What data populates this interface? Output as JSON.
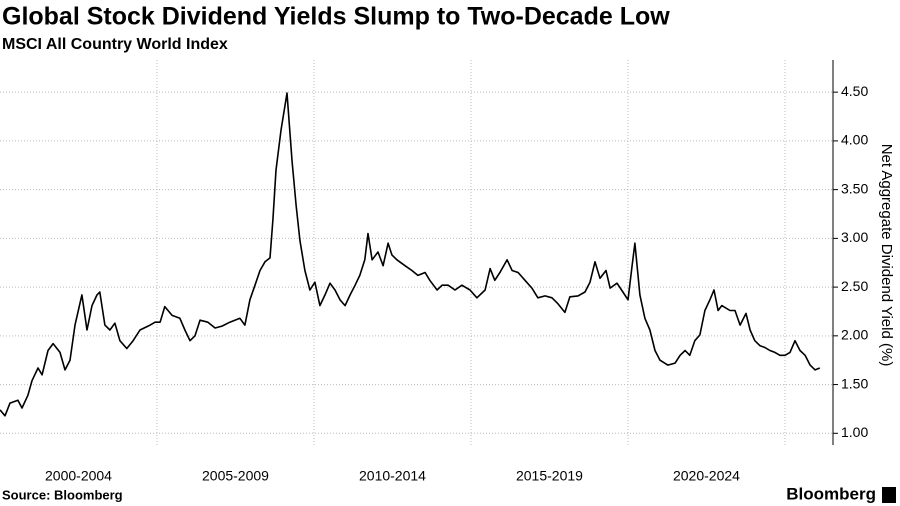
{
  "chart_data": {
    "type": "line",
    "title": "Global Stock Dividend Yields Slump to Two-Decade Low",
    "subtitle": "MSCI All Country World Index",
    "y_label": "Net Aggregate Dividend Yield (%)",
    "source": "Source: Bloomberg",
    "brand": "Bloomberg",
    "color": "#000000",
    "xlim": [
      2000,
      2026.53
    ],
    "ylim": [
      0.88,
      4.83
    ],
    "grid": true,
    "xgrid": [
      2005,
      2010,
      2015,
      2020,
      2025
    ],
    "xticks": [
      {
        "value": 2002.5,
        "label": "2000-2004"
      },
      {
        "value": 2007.5,
        "label": "2005-2009"
      },
      {
        "value": 2012.5,
        "label": "2010-2014"
      },
      {
        "value": 2017.5,
        "label": "2015-2019"
      },
      {
        "value": 2022.5,
        "label": "2020-2024"
      }
    ],
    "yticks": [
      {
        "value": 1,
        "label": "1.00"
      },
      {
        "value": 1.5,
        "label": "1.50"
      },
      {
        "value": 2,
        "label": "2.00"
      },
      {
        "value": 2.5,
        "label": "2.50"
      },
      {
        "value": 3,
        "label": "3.00"
      },
      {
        "value": 3.5,
        "label": "3.50"
      },
      {
        "value": 4,
        "label": "4.00"
      },
      {
        "value": 4.5,
        "label": "4.50"
      }
    ],
    "x": [
      2000.0,
      2000.16,
      2000.32,
      2000.57,
      2000.7,
      2000.89,
      2001.02,
      2001.21,
      2001.34,
      2001.53,
      2001.69,
      2001.91,
      2002.07,
      2002.23,
      2002.39,
      2002.61,
      2002.77,
      2002.93,
      2003.09,
      2003.18,
      2003.34,
      2003.5,
      2003.66,
      2003.82,
      2004.04,
      2004.24,
      2004.46,
      2004.78,
      2004.94,
      2005.1,
      2005.25,
      2005.48,
      2005.73,
      2005.89,
      2006.05,
      2006.21,
      2006.37,
      2006.62,
      2006.85,
      2007.07,
      2007.32,
      2007.64,
      2007.8,
      2007.96,
      2008.12,
      2008.28,
      2008.44,
      2008.6,
      2008.69,
      2008.79,
      2008.95,
      2009.14,
      2009.3,
      2009.43,
      2009.55,
      2009.71,
      2009.87,
      2010.03,
      2010.19,
      2010.35,
      2010.51,
      2010.67,
      2010.83,
      2010.99,
      2011.15,
      2011.31,
      2011.46,
      2011.62,
      2011.72,
      2011.85,
      2012.04,
      2012.2,
      2012.36,
      2012.48,
      2012.64,
      2012.9,
      2013.12,
      2013.31,
      2013.54,
      2013.69,
      2013.92,
      2014.08,
      2014.27,
      2014.49,
      2014.71,
      2014.97,
      2015.19,
      2015.45,
      2015.61,
      2015.76,
      2015.92,
      2016.15,
      2016.31,
      2016.5,
      2016.72,
      2016.94,
      2017.13,
      2017.36,
      2017.58,
      2017.77,
      2017.99,
      2018.15,
      2018.41,
      2018.63,
      2018.79,
      2018.95,
      2019.11,
      2019.3,
      2019.43,
      2019.65,
      2019.84,
      2020.0,
      2020.13,
      2020.22,
      2020.38,
      2020.54,
      2020.7,
      2020.86,
      2021.02,
      2021.27,
      2021.5,
      2021.66,
      2021.82,
      2021.97,
      2022.13,
      2022.29,
      2022.45,
      2022.61,
      2022.74,
      2022.87,
      2022.99,
      2023.25,
      2023.41,
      2023.57,
      2023.76,
      2023.89,
      2024.04,
      2024.2,
      2024.36,
      2024.52,
      2024.68,
      2024.84,
      2025.0,
      2025.16,
      2025.32,
      2025.48,
      2025.64,
      2025.8,
      2025.96,
      2026.11
    ],
    "values": [
      1.24,
      1.18,
      1.31,
      1.34,
      1.26,
      1.39,
      1.54,
      1.67,
      1.6,
      1.85,
      1.92,
      1.83,
      1.65,
      1.75,
      2.11,
      2.42,
      2.06,
      2.31,
      2.42,
      2.45,
      2.11,
      2.06,
      2.13,
      1.95,
      1.87,
      1.95,
      2.06,
      2.11,
      2.14,
      2.14,
      2.3,
      2.21,
      2.18,
      2.06,
      1.95,
      2.0,
      2.16,
      2.14,
      2.08,
      2.1,
      2.14,
      2.18,
      2.11,
      2.37,
      2.52,
      2.67,
      2.76,
      2.8,
      3.19,
      3.7,
      4.11,
      4.49,
      3.8,
      3.34,
      2.98,
      2.67,
      2.47,
      2.55,
      2.31,
      2.42,
      2.54,
      2.47,
      2.37,
      2.31,
      2.42,
      2.52,
      2.62,
      2.78,
      3.05,
      2.78,
      2.86,
      2.72,
      2.95,
      2.83,
      2.78,
      2.72,
      2.67,
      2.62,
      2.65,
      2.57,
      2.47,
      2.52,
      2.52,
      2.47,
      2.52,
      2.47,
      2.39,
      2.47,
      2.69,
      2.57,
      2.65,
      2.78,
      2.67,
      2.65,
      2.57,
      2.49,
      2.39,
      2.41,
      2.39,
      2.33,
      2.24,
      2.4,
      2.41,
      2.45,
      2.55,
      2.76,
      2.59,
      2.67,
      2.49,
      2.54,
      2.45,
      2.37,
      2.72,
      2.95,
      2.42,
      2.18,
      2.06,
      1.85,
      1.75,
      1.7,
      1.72,
      1.8,
      1.85,
      1.8,
      1.95,
      2.01,
      2.26,
      2.37,
      2.47,
      2.26,
      2.31,
      2.26,
      2.26,
      2.11,
      2.23,
      2.06,
      1.95,
      1.9,
      1.88,
      1.85,
      1.83,
      1.8,
      1.8,
      1.83,
      1.95,
      1.85,
      1.8,
      1.7,
      1.65,
      1.67
    ]
  }
}
